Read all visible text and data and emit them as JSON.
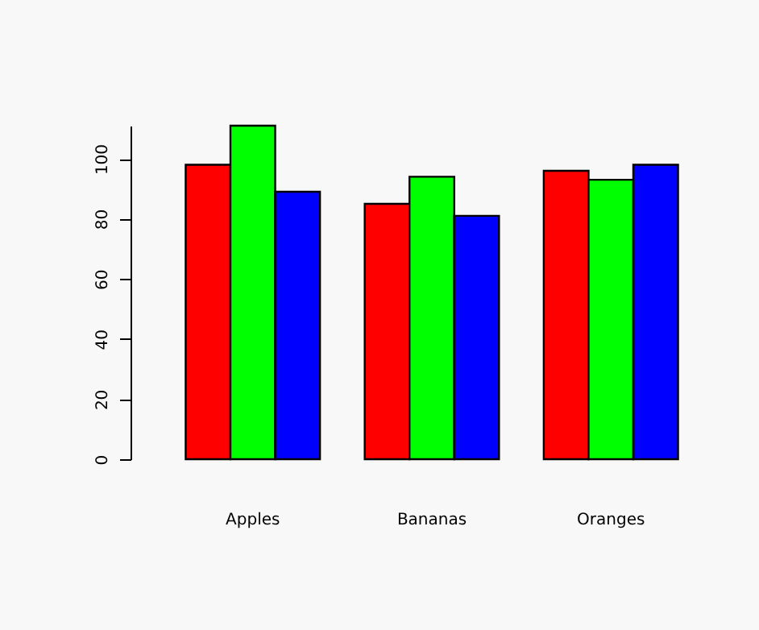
{
  "chart_data": {
    "type": "bar",
    "categories": [
      "Apples",
      "Bananas",
      "Oranges"
    ],
    "series": [
      {
        "color": "#ff0000",
        "values": [
          98,
          85,
          96
        ]
      },
      {
        "color": "#00ff00",
        "values": [
          111,
          94,
          93
        ]
      },
      {
        "color": "#0000ff",
        "values": [
          89,
          81,
          98
        ]
      }
    ],
    "ylim": [
      0,
      111
    ],
    "yticks": [
      0,
      20,
      40,
      60,
      80,
      100
    ],
    "grid": false,
    "legend": false
  }
}
